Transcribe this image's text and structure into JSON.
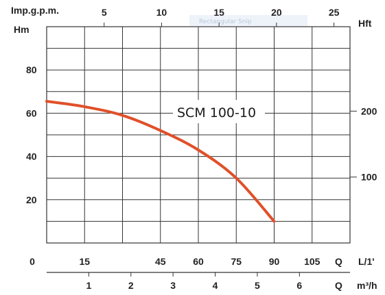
{
  "chart_data": {
    "type": "line",
    "title": "SCM 100-10",
    "watermark": "Rectangular Snip",
    "colors": {
      "curve": "#e0502a",
      "grid": "#333333",
      "text": "#222222",
      "watermark_bg": "#eef3fa"
    },
    "axes": {
      "left": {
        "label": "Hm",
        "ticks": [
          20,
          40,
          60,
          80
        ],
        "range": [
          0,
          100
        ]
      },
      "right": {
        "label": "Hft",
        "ticks": [
          100,
          200
        ],
        "range_hint_m_per_ft": 0.3048
      },
      "top": {
        "label": "Imp.g.p.m.",
        "ticks": [
          5,
          10,
          15,
          20,
          25
        ]
      },
      "bottom_lpm": {
        "label_q": "Q",
        "label_unit": "L/1'",
        "ticks": [
          "0",
          "15",
          "45",
          "60",
          "75",
          "90",
          "105"
        ]
      },
      "bottom_m3h": {
        "label_q": "Q",
        "label_unit": "m³/h",
        "ticks": [
          1,
          2,
          3,
          4,
          5,
          6
        ]
      }
    },
    "x_range_lpm": [
      0,
      120
    ],
    "grid": true,
    "series": [
      {
        "x_lpm": [
          0,
          15,
          30,
          45,
          60,
          75,
          90
        ],
        "y_m": [
          65.5,
          63,
          59,
          52,
          43,
          30,
          10
        ]
      }
    ]
  }
}
